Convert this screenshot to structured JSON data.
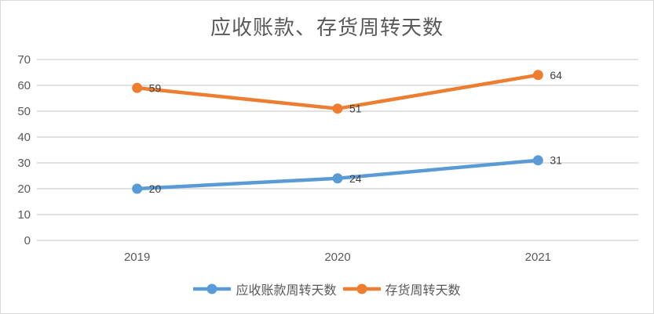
{
  "chart_data": {
    "type": "line",
    "title": "应收账款、存货周转天数",
    "categories": [
      "2019",
      "2020",
      "2021"
    ],
    "series": [
      {
        "name": "应收账款周转天数",
        "color": "#5B9BD5",
        "values": [
          20,
          24,
          31
        ]
      },
      {
        "name": "存货周转天数",
        "color": "#ED7D31",
        "values": [
          59,
          51,
          64
        ]
      }
    ],
    "yticks": [
      0,
      10,
      20,
      30,
      40,
      50,
      60,
      70
    ],
    "ylim": [
      0,
      70
    ],
    "xlabel": "",
    "ylabel": "",
    "grid": true,
    "data_labels": true,
    "legend_position": "bottom"
  },
  "colors": {
    "title": "#595959",
    "axis_labels": "#595959",
    "gridline": "#D9D9D9",
    "border": "#D9D9D9",
    "data_label": "#404040",
    "background": "#FFFFFF"
  }
}
